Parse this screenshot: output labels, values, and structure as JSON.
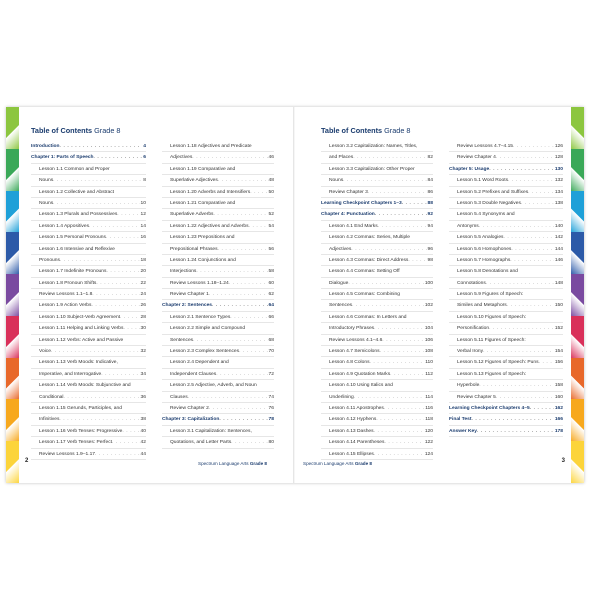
{
  "left_page": {
    "title": "Table of Contents",
    "grade": "Grade 8",
    "page_number": "2",
    "footer_brand": "Spectrum Language Arts",
    "footer_grade": "Grade 8",
    "col1": [
      {
        "text": "Introduction",
        "page": "4",
        "style": "h"
      },
      {
        "text": "Chapter 1: Parts of Speech",
        "page": "6",
        "style": "h"
      },
      {
        "text": "Lesson 1.1 Common and Proper",
        "page": "",
        "style": "l1"
      },
      {
        "text": "Nouns",
        "page": "8",
        "style": "l2"
      },
      {
        "text": "Lesson 1.2 Collective and Abstract",
        "page": "",
        "style": "l1"
      },
      {
        "text": "Nouns",
        "page": "10",
        "style": "l2"
      },
      {
        "text": "Lesson 1.3 Plurals and Possessives",
        "page": "12",
        "style": "l1"
      },
      {
        "text": "Lesson 1.4 Appositives",
        "page": "14",
        "style": "l1"
      },
      {
        "text": "Lesson 1.5 Personal Pronouns",
        "page": "16",
        "style": "l1"
      },
      {
        "text": "Lesson 1.6 Intensive and Reflexive",
        "page": "",
        "style": "l1"
      },
      {
        "text": "Pronouns",
        "page": "18",
        "style": "l2"
      },
      {
        "text": "Lesson 1.7 Indefinite Pronouns",
        "page": "20",
        "style": "l1"
      },
      {
        "text": "Lesson 1.8 Pronoun Shifts",
        "page": "22",
        "style": "l1"
      },
      {
        "text": "Review Lessons 1.1–1.8",
        "page": "24",
        "style": "l1"
      },
      {
        "text": "Lesson 1.9 Action Verbs",
        "page": "26",
        "style": "l1"
      },
      {
        "text": "Lesson 1.10 Subject-Verb Agreement",
        "page": "28",
        "style": "l1"
      },
      {
        "text": "Lesson 1.11 Helping and Linking Verbs",
        "page": "30",
        "style": "l1"
      },
      {
        "text": "Lesson 1.12 Verbs: Active and Passive",
        "page": "",
        "style": "l1"
      },
      {
        "text": "Voice",
        "page": "32",
        "style": "l2"
      },
      {
        "text": "Lesson 1.13 Verb Moods: Indicative,",
        "page": "",
        "style": "l1"
      },
      {
        "text": "Imperative, and Interrogative",
        "page": "34",
        "style": "l2"
      },
      {
        "text": "Lesson 1.14 Verb Moods: Subjunctive and",
        "page": "",
        "style": "l1"
      },
      {
        "text": "Conditional",
        "page": "36",
        "style": "l2"
      },
      {
        "text": "Lesson 1.15 Gerunds, Participles, and",
        "page": "",
        "style": "l1"
      },
      {
        "text": "Infinitives",
        "page": "38",
        "style": "l2"
      },
      {
        "text": "Lesson 1.16 Verb Tenses: Progressive",
        "page": "40",
        "style": "l1"
      },
      {
        "text": "Lesson 1.17 Verb Tenses: Perfect",
        "page": "42",
        "style": "l1"
      },
      {
        "text": "Review Lessons 1.9–1.17",
        "page": "44",
        "style": "l1"
      }
    ],
    "col2": [
      {
        "text": "Lesson 1.18 Adjectives and Predicate",
        "page": "",
        "style": "l1"
      },
      {
        "text": "Adjectives",
        "page": "46",
        "style": "l2"
      },
      {
        "text": "Lesson 1.19 Comparative and",
        "page": "",
        "style": "l1"
      },
      {
        "text": "Superlative Adjectives",
        "page": "48",
        "style": "l2"
      },
      {
        "text": "Lesson 1.20 Adverbs and Intensifiers",
        "page": "50",
        "style": "l1"
      },
      {
        "text": "Lesson 1.21 Comparative and",
        "page": "",
        "style": "l1"
      },
      {
        "text": "Superlative Adverbs",
        "page": "52",
        "style": "l2"
      },
      {
        "text": "Lesson 1.22 Adjectives and Adverbs",
        "page": "54",
        "style": "l1"
      },
      {
        "text": "Lesson 1.23 Prepositions and",
        "page": "",
        "style": "l1"
      },
      {
        "text": "Prepositional Phrases",
        "page": "56",
        "style": "l2"
      },
      {
        "text": "Lesson 1.24 Conjunctions and",
        "page": "",
        "style": "l1"
      },
      {
        "text": "Interjections",
        "page": "58",
        "style": "l2"
      },
      {
        "text": "Review Lessons 1.18–1.24",
        "page": "60",
        "style": "l1"
      },
      {
        "text": "Review Chapter 1",
        "page": "62",
        "style": "l1"
      },
      {
        "text": "Chapter 2: Sentences",
        "page": "64",
        "style": "h"
      },
      {
        "text": "Lesson 2.1 Sentence Types",
        "page": "66",
        "style": "l1"
      },
      {
        "text": "Lesson 2.2 Simple and Compound",
        "page": "",
        "style": "l1"
      },
      {
        "text": "Sentences",
        "page": "68",
        "style": "l2"
      },
      {
        "text": "Lesson 2.3 Complex Sentences",
        "page": "70",
        "style": "l1"
      },
      {
        "text": "Lesson 2.4 Dependent and",
        "page": "",
        "style": "l1"
      },
      {
        "text": "Independent Clauses",
        "page": "72",
        "style": "l2"
      },
      {
        "text": "Lesson 2.5 Adjective, Adverb, and Noun",
        "page": "",
        "style": "l1"
      },
      {
        "text": "Clauses",
        "page": "74",
        "style": "l2"
      },
      {
        "text": "Review Chapter 2",
        "page": "76",
        "style": "l1"
      },
      {
        "text": "Chapter 3: Capitalization",
        "page": "78",
        "style": "h"
      },
      {
        "text": "Lesson 3.1 Capitalization: Sentences,",
        "page": "",
        "style": "l1"
      },
      {
        "text": "Quotations, and Letter Parts",
        "page": "80",
        "style": "l2"
      }
    ]
  },
  "right_page": {
    "title": "Table of Contents",
    "grade": "Grade 8",
    "page_number": "3",
    "footer_brand": "Spectrum Language Arts",
    "footer_grade": "Grade 8",
    "col1": [
      {
        "text": "Lesson 3.2 Capitalization: Names, Titles,",
        "page": "",
        "style": "l1"
      },
      {
        "text": "and Places",
        "page": "82",
        "style": "l2"
      },
      {
        "text": "Lesson 3.3 Capitalization: Other Proper",
        "page": "",
        "style": "l1"
      },
      {
        "text": "Nouns",
        "page": "84",
        "style": "l2"
      },
      {
        "text": "Review Chapter 3",
        "page": "86",
        "style": "l1"
      },
      {
        "text": "Learning Checkpoint Chapters 1–3",
        "page": "88",
        "style": "h"
      },
      {
        "text": "Chapter 4: Punctuation",
        "page": "92",
        "style": "h"
      },
      {
        "text": "Lesson 4.1 End Marks",
        "page": "94",
        "style": "l1"
      },
      {
        "text": "Lesson 4.2 Commas: Series, Multiple",
        "page": "",
        "style": "l1"
      },
      {
        "text": "Adjectives",
        "page": "96",
        "style": "l2"
      },
      {
        "text": "Lesson 4.3 Commas: Direct Address",
        "page": "98",
        "style": "l1"
      },
      {
        "text": "Lesson 4.4 Commas: Setting Off",
        "page": "",
        "style": "l1"
      },
      {
        "text": "Dialogue",
        "page": "100",
        "style": "l2"
      },
      {
        "text": "Lesson 4.5 Commas: Combining",
        "page": "",
        "style": "l1"
      },
      {
        "text": "Sentences",
        "page": "102",
        "style": "l2"
      },
      {
        "text": "Lesson 4.6 Commas: In Letters and",
        "page": "",
        "style": "l1"
      },
      {
        "text": "Introductory Phrases",
        "page": "104",
        "style": "l2"
      },
      {
        "text": "Review Lessons 4.1–4.6",
        "page": "106",
        "style": "l1"
      },
      {
        "text": "Lesson 4.7 Semicolons",
        "page": "108",
        "style": "l1"
      },
      {
        "text": "Lesson 4.8 Colons",
        "page": "110",
        "style": "l1"
      },
      {
        "text": "Lesson 4.9 Quotation Marks",
        "page": "112",
        "style": "l1"
      },
      {
        "text": "Lesson 4.10 Using Italics and",
        "page": "",
        "style": "l1"
      },
      {
        "text": "Underlining",
        "page": "114",
        "style": "l2"
      },
      {
        "text": "Lesson 4.11 Apostrophes",
        "page": "116",
        "style": "l1"
      },
      {
        "text": "Lesson 4.12 Hyphens",
        "page": "118",
        "style": "l1"
      },
      {
        "text": "Lesson 4.13 Dashes",
        "page": "120",
        "style": "l1"
      },
      {
        "text": "Lesson 4.14 Parentheses",
        "page": "122",
        "style": "l1"
      },
      {
        "text": "Lesson 4.15 Ellipses",
        "page": "124",
        "style": "l1"
      }
    ],
    "col2": [
      {
        "text": "Review Lessons 4.7–4.15",
        "page": "126",
        "style": "l1"
      },
      {
        "text": "Review Chapter 4",
        "page": "128",
        "style": "l1"
      },
      {
        "text": "Chapter 5: Usage",
        "page": "130",
        "style": "h"
      },
      {
        "text": "Lesson 5.1 Word Roots",
        "page": "132",
        "style": "l1"
      },
      {
        "text": "Lesson 5.2 Prefixes and Suffixes",
        "page": "134",
        "style": "l1"
      },
      {
        "text": "Lesson 5.3 Double Negatives",
        "page": "138",
        "style": "l1"
      },
      {
        "text": "Lesson 5.4 Synonyms and",
        "page": "",
        "style": "l1"
      },
      {
        "text": "Antonyms",
        "page": "140",
        "style": "l2"
      },
      {
        "text": "Lesson 5.5 Analogies",
        "page": "142",
        "style": "l1"
      },
      {
        "text": "Lesson 5.6 Homophones",
        "page": "144",
        "style": "l1"
      },
      {
        "text": "Lesson 5.7 Homographs",
        "page": "146",
        "style": "l1"
      },
      {
        "text": "Lesson 5.8 Denotations and",
        "page": "",
        "style": "l1"
      },
      {
        "text": "Connotations",
        "page": "148",
        "style": "l2"
      },
      {
        "text": "Lesson 5.9 Figures of Speech:",
        "page": "",
        "style": "l1"
      },
      {
        "text": "Similes and Metaphors",
        "page": "150",
        "style": "l2"
      },
      {
        "text": "Lesson 5.10 Figures of Speech:",
        "page": "",
        "style": "l1"
      },
      {
        "text": "Personification",
        "page": "152",
        "style": "l2"
      },
      {
        "text": "Lesson 5.11 Figures of Speech:",
        "page": "",
        "style": "l1"
      },
      {
        "text": "Verbal Irony",
        "page": "154",
        "style": "l2"
      },
      {
        "text": "Lesson 5.12 Figures of Speech: Puns",
        "page": "156",
        "style": "l1"
      },
      {
        "text": "Lesson 5.13 Figures of Speech:",
        "page": "",
        "style": "l1"
      },
      {
        "text": "Hyperbole",
        "page": "158",
        "style": "l2"
      },
      {
        "text": "Review Chapter 5",
        "page": "160",
        "style": "l1"
      },
      {
        "text": "Learning Checkpoint Chapters 4–5",
        "page": "162",
        "style": "h"
      },
      {
        "text": "Final Test",
        "page": "166",
        "style": "h"
      },
      {
        "text": "Answer Key",
        "page": "178",
        "style": "h"
      }
    ]
  },
  "colors": {
    "heading": "#1b3c6e",
    "stripe": [
      "#8cc63f",
      "#3aa858",
      "#1ea0d8",
      "#2c5aa8",
      "#7a4aa0",
      "#d9305a",
      "#e8682a",
      "#f7a81d",
      "#fcd43a"
    ]
  }
}
